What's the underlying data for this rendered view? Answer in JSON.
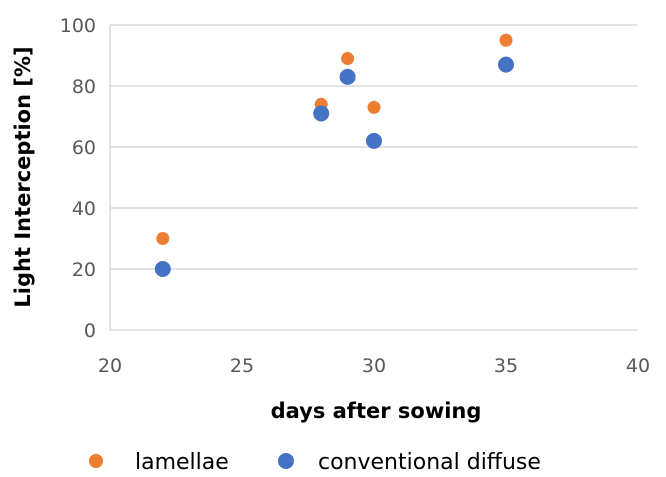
{
  "chart_data": {
    "type": "scatter",
    "xlabel": "days after sowing",
    "ylabel": "Light Interception [%]",
    "xlim": [
      20,
      40
    ],
    "ylim": [
      0,
      100
    ],
    "xticks": [
      "20",
      "25",
      "30",
      "35",
      "40"
    ],
    "yticks": [
      "0",
      "20",
      "40",
      "60",
      "80",
      "100"
    ],
    "grid": "horizontal",
    "legend_position": "bottom",
    "series": [
      {
        "name": "lamellae",
        "color": "#ED7D31",
        "points": [
          {
            "x": 22,
            "y": 30
          },
          {
            "x": 28,
            "y": 74
          },
          {
            "x": 29,
            "y": 89
          },
          {
            "x": 30,
            "y": 73
          },
          {
            "x": 35,
            "y": 95
          }
        ]
      },
      {
        "name": "conventional diffuse",
        "color": "#4472C4",
        "points": [
          {
            "x": 22,
            "y": 20
          },
          {
            "x": 28,
            "y": 71
          },
          {
            "x": 29,
            "y": 83
          },
          {
            "x": 30,
            "y": 62
          },
          {
            "x": 35,
            "y": 87
          }
        ]
      }
    ]
  }
}
